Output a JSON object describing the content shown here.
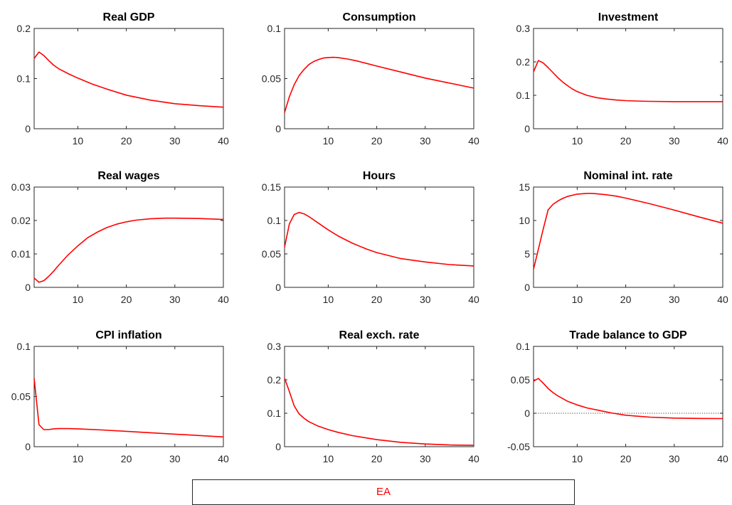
{
  "legend": {
    "label": "EA",
    "color": "#ff0000"
  },
  "chart_data": [
    {
      "type": "line",
      "title": "Real GDP",
      "xlim": [
        1,
        40
      ],
      "ylim": [
        0,
        0.2
      ],
      "xticks": [
        10,
        20,
        30,
        40
      ],
      "yticks": [
        0,
        0.1,
        0.2
      ],
      "xtick_labels": [
        "10",
        "20",
        "30",
        "40"
      ],
      "ytick_labels": [
        "0",
        "0.1",
        "0.2"
      ],
      "grid": false,
      "zero_line": false,
      "series": [
        {
          "name": "EA",
          "x": [
            1,
            2,
            3,
            4,
            5,
            6,
            8,
            10,
            13,
            16,
            20,
            25,
            30,
            35,
            40
          ],
          "values": [
            0.14,
            0.153,
            0.146,
            0.136,
            0.127,
            0.12,
            0.11,
            0.101,
            0.089,
            0.079,
            0.067,
            0.057,
            0.05,
            0.046,
            0.043
          ]
        }
      ]
    },
    {
      "type": "line",
      "title": "Consumption",
      "xlim": [
        1,
        40
      ],
      "ylim": [
        0,
        0.1
      ],
      "xticks": [
        10,
        20,
        30,
        40
      ],
      "yticks": [
        0,
        0.05,
        0.1
      ],
      "xtick_labels": [
        "10",
        "20",
        "30",
        "40"
      ],
      "ytick_labels": [
        "0",
        "0.05",
        "0.1"
      ],
      "grid": false,
      "zero_line": false,
      "series": [
        {
          "name": "EA",
          "x": [
            1,
            2,
            3,
            4,
            5,
            6,
            7,
            8,
            9,
            10,
            11,
            12,
            14,
            16,
            18,
            20,
            25,
            30,
            35,
            40
          ],
          "values": [
            0.016,
            0.032,
            0.044,
            0.053,
            0.059,
            0.064,
            0.067,
            0.069,
            0.0705,
            0.071,
            0.0712,
            0.071,
            0.0695,
            0.0675,
            0.065,
            0.0625,
            0.0565,
            0.0505,
            0.0455,
            0.0405
          ]
        }
      ]
    },
    {
      "type": "line",
      "title": "Investment",
      "xlim": [
        1,
        40
      ],
      "ylim": [
        0,
        0.3
      ],
      "xticks": [
        10,
        20,
        30,
        40
      ],
      "yticks": [
        0,
        0.1,
        0.2,
        0.3
      ],
      "xtick_labels": [
        "10",
        "20",
        "30",
        "40"
      ],
      "ytick_labels": [
        "0",
        "0.1",
        "0.2",
        "0.3"
      ],
      "grid": false,
      "zero_line": false,
      "series": [
        {
          "name": "EA",
          "x": [
            1,
            2,
            3,
            4,
            5,
            6,
            7,
            8,
            9,
            10,
            12,
            14,
            16,
            18,
            20,
            22,
            25,
            30,
            35,
            40
          ],
          "values": [
            0.17,
            0.204,
            0.197,
            0.183,
            0.168,
            0.153,
            0.14,
            0.129,
            0.119,
            0.111,
            0.1,
            0.093,
            0.089,
            0.086,
            0.084,
            0.083,
            0.082,
            0.081,
            0.081,
            0.081
          ]
        }
      ]
    },
    {
      "type": "line",
      "title": "Real wages",
      "xlim": [
        1,
        40
      ],
      "ylim": [
        0,
        0.03
      ],
      "xticks": [
        10,
        20,
        30,
        40
      ],
      "yticks": [
        0,
        0.01,
        0.02,
        0.03
      ],
      "xtick_labels": [
        "10",
        "20",
        "30",
        "40"
      ],
      "ytick_labels": [
        "0",
        "0.01",
        "0.02",
        "0.03"
      ],
      "grid": false,
      "zero_line": false,
      "series": [
        {
          "name": "EA",
          "x": [
            1,
            2,
            3,
            4,
            5,
            6,
            7,
            8,
            10,
            12,
            14,
            16,
            18,
            20,
            22,
            25,
            28,
            30,
            35,
            40
          ],
          "values": [
            0.0028,
            0.0015,
            0.002,
            0.0033,
            0.0048,
            0.0065,
            0.0081,
            0.0097,
            0.0124,
            0.0148,
            0.0165,
            0.0179,
            0.0189,
            0.0196,
            0.0201,
            0.0205,
            0.0207,
            0.0207,
            0.0206,
            0.0203
          ]
        }
      ]
    },
    {
      "type": "line",
      "title": "Hours",
      "xlim": [
        1,
        40
      ],
      "ylim": [
        0,
        0.15
      ],
      "xticks": [
        10,
        20,
        30,
        40
      ],
      "yticks": [
        0,
        0.05,
        0.1,
        0.15
      ],
      "xtick_labels": [
        "10",
        "20",
        "30",
        "40"
      ],
      "ytick_labels": [
        "0",
        "0.05",
        "0.1",
        "0.15"
      ],
      "grid": false,
      "zero_line": false,
      "series": [
        {
          "name": "EA",
          "x": [
            1,
            2,
            3,
            4,
            5,
            6,
            8,
            10,
            12,
            15,
            18,
            20,
            25,
            30,
            35,
            40
          ],
          "values": [
            0.06,
            0.095,
            0.109,
            0.112,
            0.11,
            0.106,
            0.096,
            0.086,
            0.077,
            0.066,
            0.057,
            0.052,
            0.043,
            0.038,
            0.034,
            0.032
          ]
        }
      ]
    },
    {
      "type": "line",
      "title": "Nominal int. rate",
      "xlim": [
        1,
        40
      ],
      "ylim": [
        0,
        15
      ],
      "xticks": [
        10,
        20,
        30,
        40
      ],
      "yticks": [
        0,
        5,
        10,
        15
      ],
      "xtick_labels": [
        "10",
        "20",
        "30",
        "40"
      ],
      "ytick_labels": [
        "0",
        "5",
        "10",
        "15"
      ],
      "grid": false,
      "zero_line": false,
      "series": [
        {
          "name": "EA",
          "x": [
            1,
            2,
            3,
            4,
            5,
            6,
            7,
            8,
            10,
            12,
            13,
            14,
            16,
            18,
            20,
            25,
            30,
            35,
            40
          ],
          "values": [
            2.7,
            5.7,
            8.7,
            11.6,
            12.4,
            12.9,
            13.3,
            13.6,
            13.95,
            14.05,
            14.05,
            14.0,
            13.85,
            13.65,
            13.35,
            12.5,
            11.55,
            10.55,
            9.6
          ]
        }
      ]
    },
    {
      "type": "line",
      "title": "CPI inflation",
      "xlim": [
        1,
        40
      ],
      "ylim": [
        0,
        0.1
      ],
      "xticks": [
        10,
        20,
        30,
        40
      ],
      "yticks": [
        0,
        0.05,
        0.1
      ],
      "xtick_labels": [
        "10",
        "20",
        "30",
        "40"
      ],
      "ytick_labels": [
        "0",
        "0.05",
        "0.1"
      ],
      "grid": false,
      "zero_line": false,
      "series": [
        {
          "name": "EA",
          "x": [
            1,
            2,
            3,
            4,
            5,
            6,
            8,
            10,
            15,
            20,
            25,
            30,
            35,
            40
          ],
          "values": [
            0.068,
            0.022,
            0.017,
            0.017,
            0.0178,
            0.018,
            0.018,
            0.0178,
            0.0167,
            0.0153,
            0.0139,
            0.0125,
            0.0111,
            0.0097
          ]
        }
      ]
    },
    {
      "type": "line",
      "title": "Real exch. rate",
      "xlim": [
        1,
        40
      ],
      "ylim": [
        0,
        0.3
      ],
      "xticks": [
        10,
        20,
        30,
        40
      ],
      "yticks": [
        0,
        0.1,
        0.2,
        0.3
      ],
      "xtick_labels": [
        "10",
        "20",
        "30",
        "40"
      ],
      "ytick_labels": [
        "0",
        "0.1",
        "0.2",
        "0.3"
      ],
      "grid": false,
      "zero_line": false,
      "series": [
        {
          "name": "EA",
          "x": [
            1,
            2,
            3,
            4,
            5,
            6,
            8,
            10,
            12,
            15,
            20,
            25,
            30,
            35,
            40
          ],
          "values": [
            0.205,
            0.165,
            0.122,
            0.098,
            0.085,
            0.075,
            0.061,
            0.051,
            0.043,
            0.033,
            0.021,
            0.013,
            0.008,
            0.005,
            0.004
          ]
        }
      ]
    },
    {
      "type": "line",
      "title": "Trade balance to GDP",
      "xlim": [
        1,
        40
      ],
      "ylim": [
        -0.05,
        0.1
      ],
      "xticks": [
        10,
        20,
        30,
        40
      ],
      "yticks": [
        -0.05,
        0,
        0.05,
        0.1
      ],
      "xtick_labels": [
        "10",
        "20",
        "30",
        "40"
      ],
      "ytick_labels": [
        "-0.05",
        "0",
        "0.05",
        "0.1"
      ],
      "grid": false,
      "zero_line": true,
      "series": [
        {
          "name": "EA",
          "x": [
            1,
            2,
            3,
            4,
            5,
            6,
            8,
            10,
            12,
            15,
            17,
            20,
            25,
            30,
            35,
            40
          ],
          "values": [
            0.048,
            0.052,
            0.045,
            0.037,
            0.031,
            0.026,
            0.018,
            0.0125,
            0.008,
            0.0035,
            0.0005,
            -0.003,
            -0.0058,
            -0.0072,
            -0.0078,
            -0.008
          ]
        }
      ]
    }
  ]
}
